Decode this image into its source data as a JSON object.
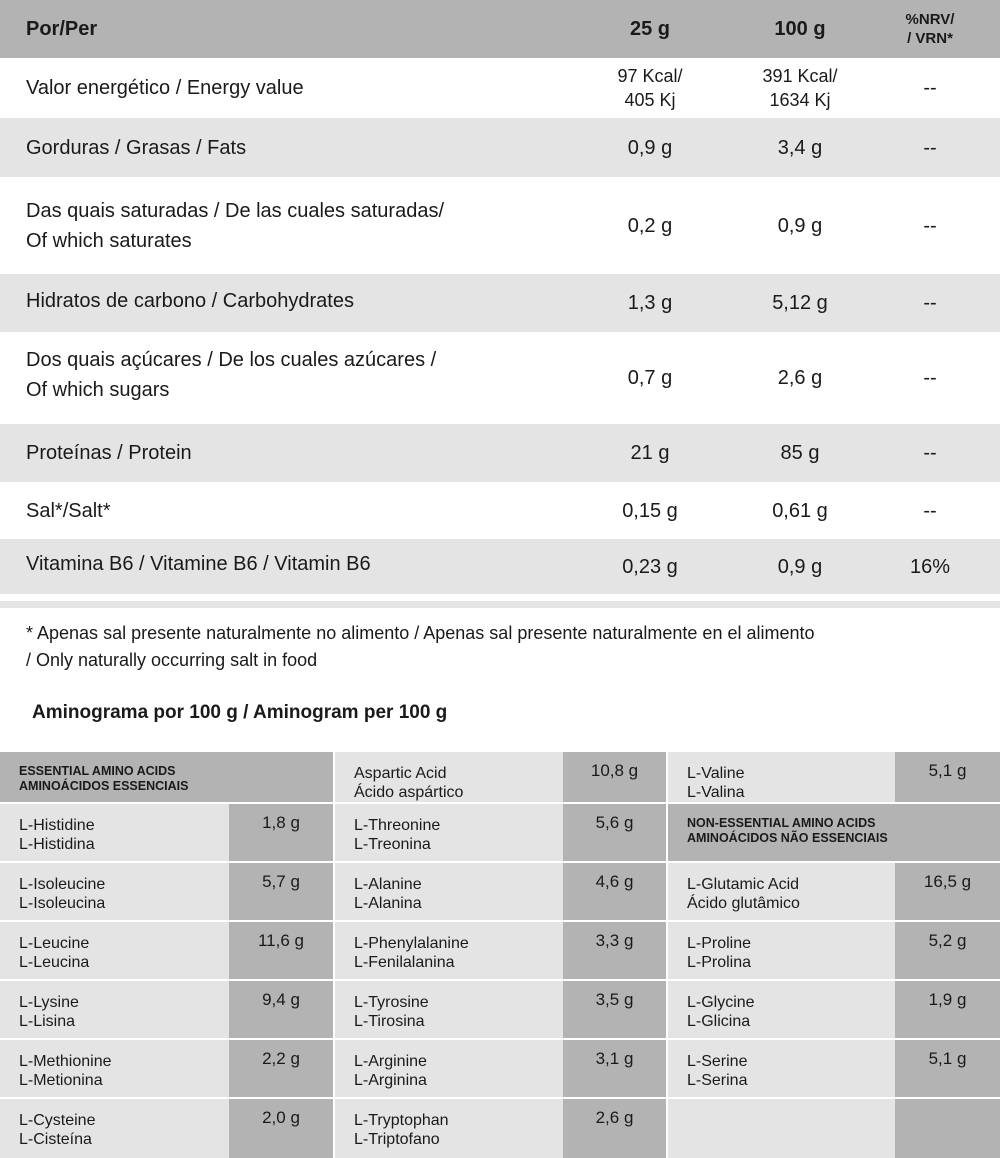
{
  "nutrition": {
    "header": {
      "label": "Por/Per",
      "col25": "25 g",
      "col100": "100 g",
      "nrv_line1": "%NRV/",
      "nrv_line2": "/ VRN*"
    },
    "rows": [
      {
        "label": "Valor energético / Energy value",
        "v25_line1": "97 Kcal/",
        "v25_line2": "405 Kj",
        "v100_line1": "391 Kcal/",
        "v100_line2": "1634 Kj",
        "nrv": "--"
      },
      {
        "label": "Gorduras / Grasas / Fats",
        "v25": "0,9 g",
        "v100": "3,4 g",
        "nrv": "--"
      },
      {
        "label_line1": "Das quais saturadas / De las cuales saturadas/",
        "label_line2": "Of which saturates",
        "v25": "0,2 g",
        "v100": "0,9 g",
        "nrv": "--"
      },
      {
        "label": "Hidratos de carbono / Carbohydrates",
        "v25": "1,3 g",
        "v100": "5,12 g",
        "nrv": "--"
      },
      {
        "label_line1": "Dos quais açúcares / De los cuales azúcares /",
        "label_line2": "Of which sugars",
        "v25": "0,7 g",
        "v100": "2,6 g",
        "nrv": "--"
      },
      {
        "label": "Proteínas / Protein",
        "v25": "21 g",
        "v100": "85 g",
        "nrv": "--"
      },
      {
        "label": "Sal*/Salt*",
        "v25": "0,15 g",
        "v100": "0,61 g",
        "nrv": "--"
      },
      {
        "label": "Vitamina B6 / Vitamine B6 / Vitamin B6",
        "v25": "0,23 g",
        "v100": "0,9 g",
        "nrv": "16%"
      }
    ],
    "footnote_line1": "* Apenas sal presente naturalmente no alimento /  Apenas sal presente naturalmente en el alimento",
    "footnote_line2": "/ Only naturally occurring salt in food"
  },
  "aminogram": {
    "title": "Aminograma por 100 g / Aminogram per 100 g",
    "essential_header_line1": "ESSENTIAL AMINO ACIDS",
    "essential_header_line2": "AMINOÁCIDOS ESSENCIAIS",
    "nonessential_header_line1": "NON-ESSENTIAL AMINO ACIDS",
    "nonessential_header_line2": "AMINOÁCIDOS NÃO ESSENCIAIS",
    "col1": [
      {
        "en": "L-Histidine",
        "pt": "L-Histidina",
        "value": "1,8 g"
      },
      {
        "en": "L-Isoleucine",
        "pt": "L-Isoleucina",
        "value": "5,7 g"
      },
      {
        "en": "L-Leucine",
        "pt": "L-Leucina",
        "value": "11,6 g"
      },
      {
        "en": "L-Lysine",
        "pt": "L-Lisina",
        "value": "9,4 g"
      },
      {
        "en": "L-Methionine",
        "pt": "L-Metionina",
        "value": "2,2 g"
      },
      {
        "en": "L-Cysteine",
        "pt": "L-Cisteína",
        "value": "2,0 g"
      }
    ],
    "col2": [
      {
        "en": "Aspartic Acid",
        "pt": "Ácido aspártico",
        "value": "10,8 g"
      },
      {
        "en": "L-Threonine",
        "pt": "L-Treonina",
        "value": "5,6 g"
      },
      {
        "en": "L-Alanine",
        "pt": "L-Alanina",
        "value": "4,6 g"
      },
      {
        "en": "L-Phenylalanine",
        "pt": "L-Fenilalanina",
        "value": "3,3 g"
      },
      {
        "en": "L-Tyrosine",
        "pt": "L-Tirosina",
        "value": "3,5 g"
      },
      {
        "en": "L-Arginine",
        "pt": "L-Arginina",
        "value": "3,1 g"
      },
      {
        "en": "L-Tryptophan",
        "pt": "L-Triptofano",
        "value": "2,6 g"
      }
    ],
    "col3_top": {
      "en": "L-Valine",
      "pt": "L-Valina",
      "value": "5,1 g"
    },
    "col3": [
      {
        "en": "L-Glutamic Acid",
        "pt": "Ácido glutâmico",
        "value": "16,5 g"
      },
      {
        "en": "L-Proline",
        "pt": "L-Prolina",
        "value": "5,2 g"
      },
      {
        "en": "L-Glycine",
        "pt": "L-Glicina",
        "value": "1,9 g"
      },
      {
        "en": "L-Serine",
        "pt": "L-Serina",
        "value": "5,1 g"
      }
    ]
  }
}
